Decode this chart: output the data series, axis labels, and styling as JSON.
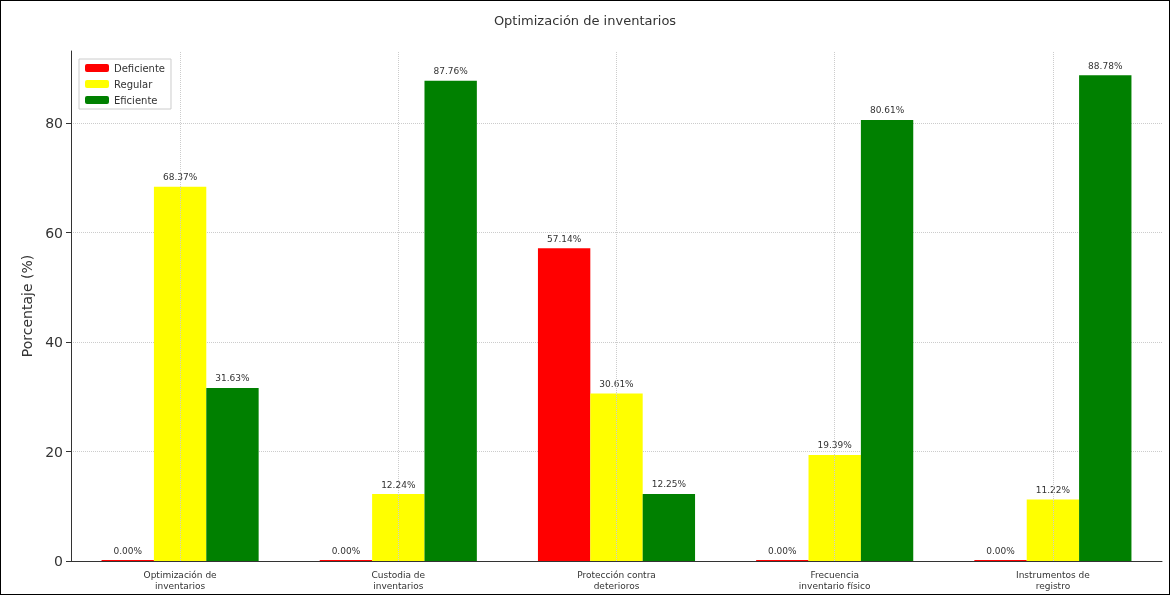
{
  "chart_data": {
    "type": "bar",
    "title": "Optimización de inventarios",
    "ylabel": "Porcentaje (%)",
    "categories": [
      "Optimización de\ninventarios",
      "Custodia de\ninventarios",
      "Protección contra\ndeterioros",
      "Frecuencia\ninventario físico",
      "Instrumentos de\nregistro"
    ],
    "series": [
      {
        "name": "Deficiente",
        "color": "#ff0000",
        "values": [
          0,
          0,
          57.14,
          0,
          0
        ],
        "value_labels": [
          "0.00%",
          "0.00%",
          "57.14%",
          "0.00%",
          "0.00%"
        ]
      },
      {
        "name": "Regular",
        "color": "#ffff00",
        "values": [
          68.37,
          12.24,
          30.61,
          19.39,
          11.22
        ],
        "value_labels": [
          "68.37%",
          "12.24%",
          "30.61%",
          "19.39%",
          "11.22%"
        ]
      },
      {
        "name": "Eficiente",
        "color": "#008000",
        "values": [
          31.63,
          87.76,
          12.25,
          80.61,
          88.78
        ],
        "value_labels": [
          "31.63%",
          "87.76%",
          "12.25%",
          "80.61%",
          "88.78%"
        ]
      }
    ],
    "ylim": [
      0,
      93.2
    ],
    "yticks": [
      0,
      20,
      40,
      60,
      80
    ],
    "grid": true,
    "legend": "top left"
  }
}
